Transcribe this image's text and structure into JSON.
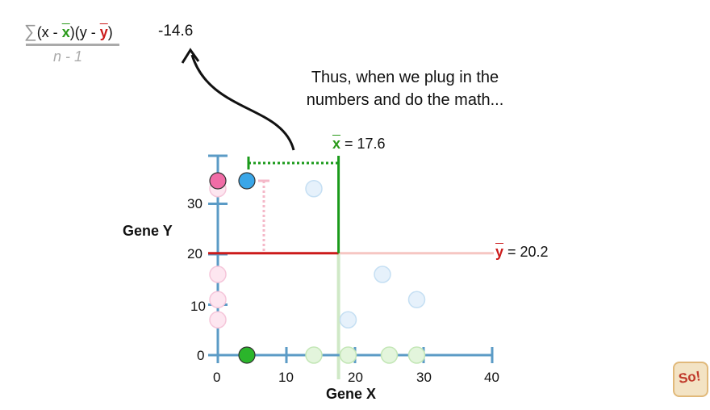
{
  "formula": {
    "sum_symbol": "∑",
    "numerator_open": "(x - ",
    "xbar": "x",
    "middle": ")(y - ",
    "ybar": "y",
    "close": ")",
    "denominator": "n - 1",
    "value": "-14.6"
  },
  "caption": {
    "line1": "Thus, when we plug in the",
    "line2": "numbers and do the math..."
  },
  "means": {
    "x_label_rest": " = 17.6",
    "y_label_rest": " = 20.2"
  },
  "axes": {
    "xlabel": "Gene X",
    "ylabel": "Gene Y",
    "x_ticks": [
      "0",
      "10",
      "20",
      "30",
      "40"
    ],
    "y_ticks": [
      "0",
      "10",
      "20",
      "30"
    ]
  },
  "logo": {
    "text": "So!"
  },
  "colors": {
    "axis": "#5b9bc6",
    "mean_x": "#1a9a1a",
    "mean_y": "#cc1a1a",
    "pink": "#f06ca6",
    "blue": "#3aa6e8",
    "green": "#2bb52b"
  },
  "chart_data": {
    "type": "scatter",
    "xlabel": "Gene X",
    "ylabel": "Gene Y",
    "xlim": [
      0,
      40
    ],
    "ylim": [
      0,
      35
    ],
    "x_mean": 17.6,
    "y_mean": 20.2,
    "points_faded": [
      {
        "x": 0,
        "y": 33
      },
      {
        "x": 0,
        "y": 16
      },
      {
        "x": 0,
        "y": 11
      },
      {
        "x": 0,
        "y": 7
      },
      {
        "x": 14,
        "y": 33
      },
      {
        "x": 24,
        "y": 16
      },
      {
        "x": 29,
        "y": 11
      },
      {
        "x": 19,
        "y": 7
      },
      {
        "x": 14,
        "y": 0
      },
      {
        "x": 19,
        "y": 0
      },
      {
        "x": 25,
        "y": 0
      },
      {
        "x": 29,
        "y": 0
      }
    ],
    "highlighted": [
      {
        "x": 0,
        "y": 35,
        "color": "pink"
      },
      {
        "x": 4,
        "y": 35,
        "color": "blue"
      },
      {
        "x": 4,
        "y": 0,
        "color": "green"
      }
    ]
  }
}
